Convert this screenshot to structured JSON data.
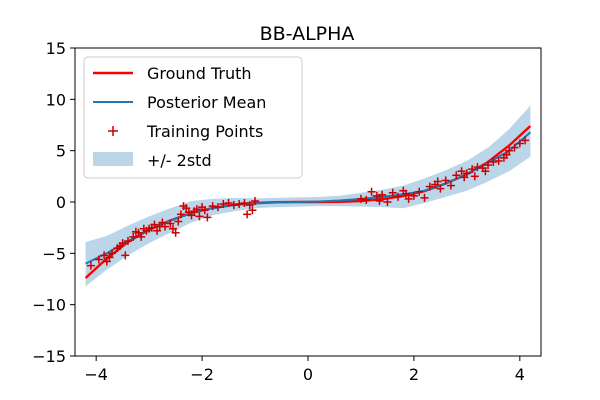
{
  "chart_data": {
    "type": "line",
    "title": "BB-ALPHA",
    "xlabel": "",
    "ylabel": "",
    "xlim": [
      -4.4,
      4.4
    ],
    "ylim": [
      -15,
      15
    ],
    "xticks": [
      -4,
      -2,
      0,
      2,
      4
    ],
    "xtick_labels": [
      "−4",
      "−2",
      "0",
      "2",
      "4"
    ],
    "yticks": [
      -15,
      -10,
      -5,
      0,
      5,
      10,
      15
    ],
    "ytick_labels": [
      "−15",
      "−10",
      "−5",
      "0",
      "5",
      "10",
      "15"
    ],
    "grid": false,
    "legend_position": "top-left",
    "series": [
      {
        "name": "Ground Truth",
        "kind": "line",
        "color": "#ff0000",
        "x": [
          -4.2,
          -3.8,
          -3.4,
          -3.0,
          -2.6,
          -2.2,
          -1.8,
          -1.4,
          -1.0,
          -0.6,
          -0.2,
          0.2,
          0.6,
          1.0,
          1.4,
          1.8,
          2.2,
          2.6,
          3.0,
          3.4,
          3.8,
          4.2
        ],
        "y": [
          -7.4,
          -5.5,
          -3.9,
          -2.7,
          -1.8,
          -1.06,
          -0.58,
          -0.27,
          -0.1,
          -0.02,
          0.0,
          0.0,
          0.02,
          0.1,
          0.27,
          0.58,
          1.06,
          1.8,
          2.7,
          3.9,
          5.5,
          7.4
        ]
      },
      {
        "name": "Posterior Mean",
        "kind": "line",
        "color": "#1f77b4",
        "x": [
          -4.2,
          -3.8,
          -3.4,
          -3.0,
          -2.6,
          -2.2,
          -1.8,
          -1.4,
          -1.0,
          -0.6,
          -0.2,
          0.2,
          0.6,
          1.0,
          1.4,
          1.8,
          2.2,
          2.6,
          3.0,
          3.4,
          3.8,
          4.2
        ],
        "y": [
          -6.0,
          -5.0,
          -3.8,
          -2.7,
          -1.8,
          -1.1,
          -0.6,
          -0.3,
          -0.15,
          -0.05,
          0.0,
          0.05,
          0.15,
          0.3,
          0.5,
          0.75,
          1.1,
          1.8,
          2.7,
          3.8,
          5.0,
          6.8
        ]
      },
      {
        "name": "Training Points",
        "kind": "scatter",
        "color": "#cc0000",
        "x": [
          -4.1,
          -3.95,
          -3.85,
          -3.8,
          -3.75,
          -3.7,
          -3.6,
          -3.55,
          -3.5,
          -3.45,
          -3.4,
          -3.3,
          -3.25,
          -3.2,
          -3.15,
          -3.1,
          -3.05,
          -3.0,
          -2.95,
          -2.9,
          -2.85,
          -2.8,
          -2.75,
          -2.7,
          -2.6,
          -2.55,
          -2.5,
          -2.45,
          -2.4,
          -2.35,
          -2.3,
          -2.25,
          -2.2,
          -2.15,
          -2.1,
          -2.05,
          -2.0,
          -1.95,
          -1.9,
          -1.8,
          -1.7,
          -1.6,
          -1.5,
          -1.4,
          -1.3,
          -1.2,
          -1.15,
          -1.1,
          -1.05,
          -1.0,
          1.0,
          1.1,
          1.2,
          1.3,
          1.35,
          1.4,
          1.5,
          1.6,
          1.7,
          1.8,
          1.85,
          1.9,
          2.0,
          2.1,
          2.2,
          2.3,
          2.4,
          2.45,
          2.5,
          2.6,
          2.7,
          2.8,
          2.9,
          2.95,
          3.0,
          3.1,
          3.15,
          3.2,
          3.3,
          3.35,
          3.4,
          3.5,
          3.6,
          3.7,
          3.75,
          3.8,
          3.9,
          4.0,
          4.1
        ],
        "y": [
          -6.2,
          -5.6,
          -5.2,
          -5.8,
          -5.4,
          -5.0,
          -4.5,
          -4.3,
          -4.0,
          -5.2,
          -3.8,
          -3.4,
          -2.9,
          -3.0,
          -3.4,
          -2.6,
          -2.8,
          -2.6,
          -2.5,
          -2.2,
          -2.8,
          -2.4,
          -2.0,
          -2.4,
          -2.1,
          -2.6,
          -3.0,
          -1.9,
          -1.2,
          -0.4,
          -0.6,
          -1.0,
          -1.3,
          -0.9,
          -0.7,
          -1.4,
          -0.5,
          -0.8,
          -1.5,
          -0.4,
          -0.5,
          -0.2,
          -0.1,
          -0.3,
          -0.2,
          -0.1,
          -1.2,
          -0.3,
          -0.8,
          0.1,
          0.3,
          0.2,
          1.0,
          0.6,
          0.1,
          0.7,
          0.0,
          0.9,
          0.5,
          1.1,
          0.8,
          0.3,
          0.6,
          1.0,
          0.4,
          1.5,
          1.7,
          2.0,
          1.3,
          2.1,
          1.6,
          2.6,
          3.0,
          2.4,
          2.8,
          3.2,
          2.5,
          3.4,
          3.3,
          3.0,
          3.6,
          3.9,
          4.0,
          4.3,
          4.6,
          5.0,
          5.3,
          5.7,
          6.0
        ]
      },
      {
        "name": "+/- 2std",
        "kind": "band",
        "color": "#1f77b4",
        "opacity": 0.3,
        "x": [
          -4.2,
          -3.8,
          -3.4,
          -3.0,
          -2.6,
          -2.2,
          -1.8,
          -1.4,
          -1.0,
          -0.6,
          -0.2,
          0.2,
          0.6,
          1.0,
          1.4,
          1.8,
          2.2,
          2.6,
          3.0,
          3.4,
          3.8,
          4.2
        ],
        "lower": [
          -8.2,
          -6.6,
          -5.2,
          -4.0,
          -3.0,
          -2.0,
          -1.3,
          -0.9,
          -0.6,
          -0.5,
          -0.45,
          -0.4,
          -0.4,
          -0.45,
          -0.5,
          -0.6,
          -0.1,
          0.5,
          1.1,
          2.0,
          3.0,
          4.4
        ],
        "upper": [
          -3.9,
          -3.3,
          -2.3,
          -1.4,
          -0.6,
          0.1,
          0.3,
          0.4,
          0.35,
          0.4,
          0.45,
          0.5,
          0.6,
          0.9,
          1.2,
          1.6,
          2.3,
          3.1,
          4.0,
          5.3,
          7.1,
          9.4
        ]
      }
    ]
  }
}
